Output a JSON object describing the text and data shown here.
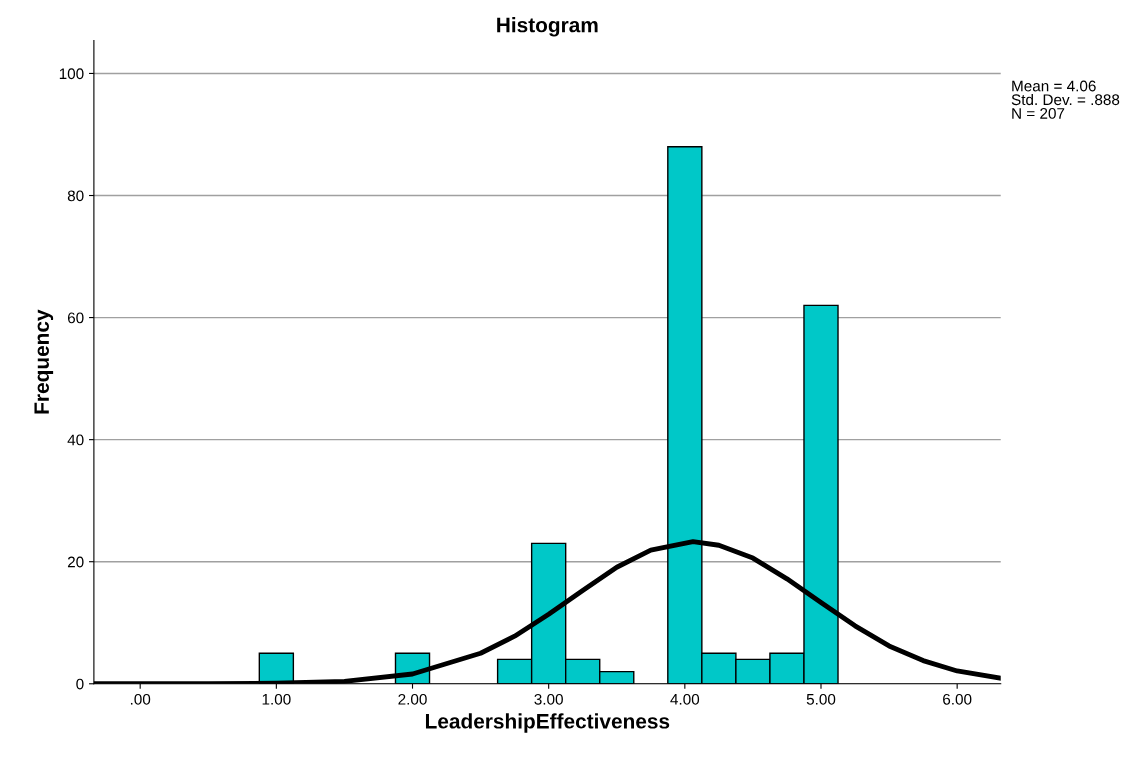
{
  "chart_data": {
    "type": "histogram",
    "title": "Histogram",
    "xlabel": "LeadershipEffectiveness",
    "ylabel": "Frequency",
    "series": [
      {
        "color": "#00c8c8",
        "bins": [
          0.875,
          1.125,
          1.375,
          1.625,
          1.875,
          2.125,
          2.375,
          2.625,
          2.875,
          3.125,
          3.375,
          3.625,
          3.875,
          4.125,
          4.375,
          4.625,
          4.875,
          5.125
        ],
        "values": [
          5,
          0,
          0,
          0,
          5,
          0,
          0,
          4,
          23,
          4,
          2,
          0,
          88,
          5,
          4,
          5,
          62
        ]
      },
      {
        "type": "line",
        "color": "#000000",
        "x": [
          -0.34,
          0,
          0.5,
          1,
          1.5,
          2,
          2.5,
          2.75,
          3,
          3.25,
          3.5,
          3.75,
          4.06,
          4.25,
          4.5,
          4.75,
          5,
          5.25,
          5.5,
          5.75,
          6,
          6.32
        ],
        "values": [
          0,
          0,
          0,
          0.1,
          0.4,
          1.6,
          5,
          7.8,
          11.4,
          15.3,
          19.1,
          21.9,
          23.3,
          22.7,
          20.6,
          17.2,
          13.3,
          9.5,
          6.2,
          3.8,
          2.1,
          0.9
        ]
      }
    ],
    "xlim": [
      -0.34,
      6.32
    ],
    "ylim": [
      0,
      105.4
    ],
    "xticks": [
      {
        "value": 0,
        "label": ".00"
      },
      {
        "value": 1,
        "label": "1.00"
      },
      {
        "value": 2,
        "label": "2.00"
      },
      {
        "value": 3,
        "label": "3.00"
      },
      {
        "value": 4,
        "label": "4.00"
      },
      {
        "value": 5,
        "label": "5.00"
      },
      {
        "value": 6,
        "label": "6.00"
      }
    ],
    "yticks": [
      0,
      20,
      40,
      60,
      80,
      100
    ],
    "grid": "y",
    "legend": false,
    "annotations": [
      "Mean = 4.06",
      "Std. Dev. = .888",
      "N = 207"
    ]
  }
}
